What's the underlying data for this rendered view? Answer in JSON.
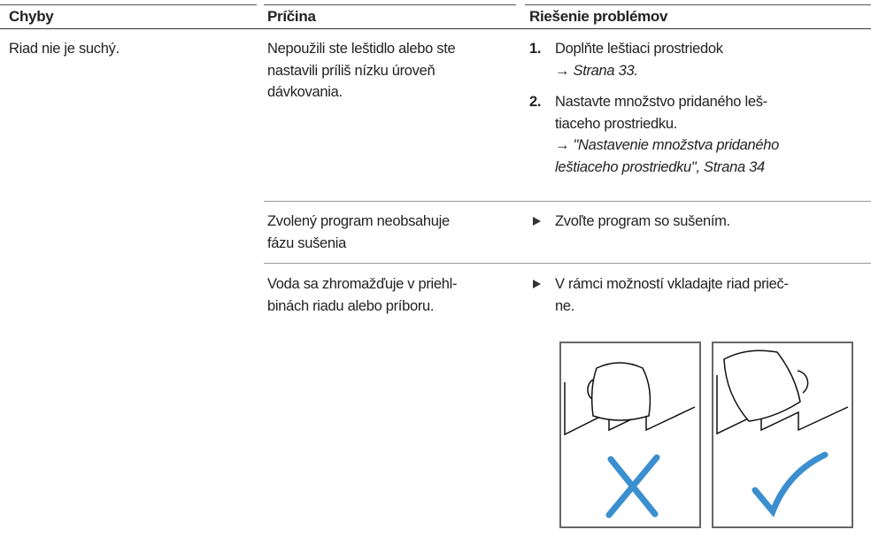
{
  "header": {
    "columns": [
      "Chyby",
      "Príčina",
      "Riešenie problémov"
    ]
  },
  "rows": [
    {
      "fault": "Riad nie je suchý.",
      "causes": [
        {
          "cause_lines": [
            "Nepoužili ste leštidlo alebo ste",
            "nastavili príliš nízku úroveň",
            "dávkovania."
          ],
          "steps": [
            {
              "number": "1.",
              "lines": [
                "Doplňte leštiaci prostriedok"
              ],
              "ref_lines": [
                "→ Strana 33."
              ]
            },
            {
              "number": "2.",
              "lines": [
                "Nastavte množstvo pridaného leš-",
                "tiaceho prostriedku."
              ],
              "ref_lines": [
                "→ \"Nastavenie množstva pridaného",
                "leštiaceho prostriedku\", Strana 34"
              ]
            }
          ]
        },
        {
          "cause_lines": [
            "Zvolený program neobsahuje",
            "fázu sušenia"
          ],
          "solution_lines": [
            "Zvoľte program so sušením."
          ]
        },
        {
          "cause_lines": [
            "Voda sa zhromažďuje v priehl-",
            "binách riadu alebo príboru."
          ],
          "solution_lines": [
            "V rámci možností vkladajte riad prieč-",
            "ne."
          ]
        }
      ]
    }
  ]
}
